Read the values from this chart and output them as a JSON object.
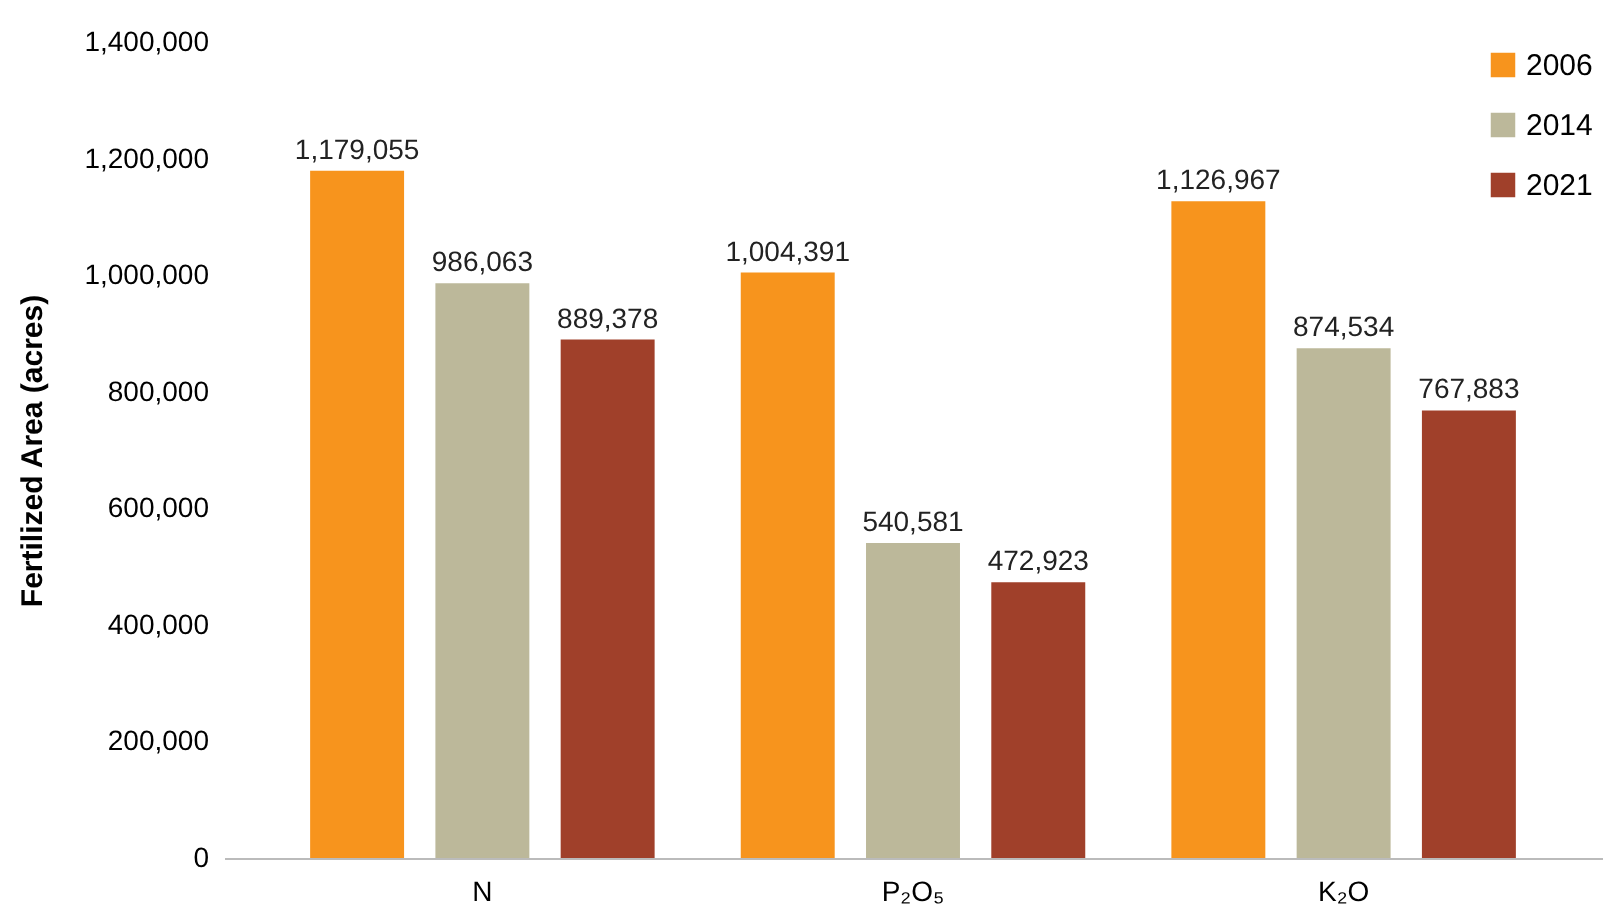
{
  "chart_data": {
    "type": "bar",
    "ylabel": "Fertilized Area (acres)",
    "categories": [
      "N",
      "P₂O₅",
      "K₂O"
    ],
    "series": [
      {
        "name": "2006",
        "color": "#f7941d",
        "values": [
          1179055,
          1004391,
          1126967
        ],
        "value_labels": [
          "1,179,055",
          "1,004,391",
          "1,126,967"
        ]
      },
      {
        "name": "2014",
        "color": "#bcb89a",
        "values": [
          986063,
          540581,
          874534
        ],
        "value_labels": [
          "986,063",
          "540,581",
          "874,534"
        ]
      },
      {
        "name": "2021",
        "color": "#a0402a",
        "values": [
          889378,
          472923,
          767883
        ],
        "value_labels": [
          "889,378",
          "472,923",
          "767,883"
        ]
      }
    ],
    "ylim": [
      0,
      1400000
    ],
    "yticks": [
      0,
      {
        "value": 200000,
        "label": "200,000"
      },
      {
        "value": 400000,
        "label": "400,000"
      },
      {
        "value": 600000,
        "label": "600,000"
      },
      {
        "value": 800000,
        "label": "800,000"
      },
      {
        "value": 1000000,
        "label": "1,000,000"
      },
      {
        "value": 1200000,
        "label": "1,200,000"
      },
      {
        "value": 1400000,
        "label": "1,400,000"
      }
    ],
    "grid": false,
    "legend": "top right"
  }
}
